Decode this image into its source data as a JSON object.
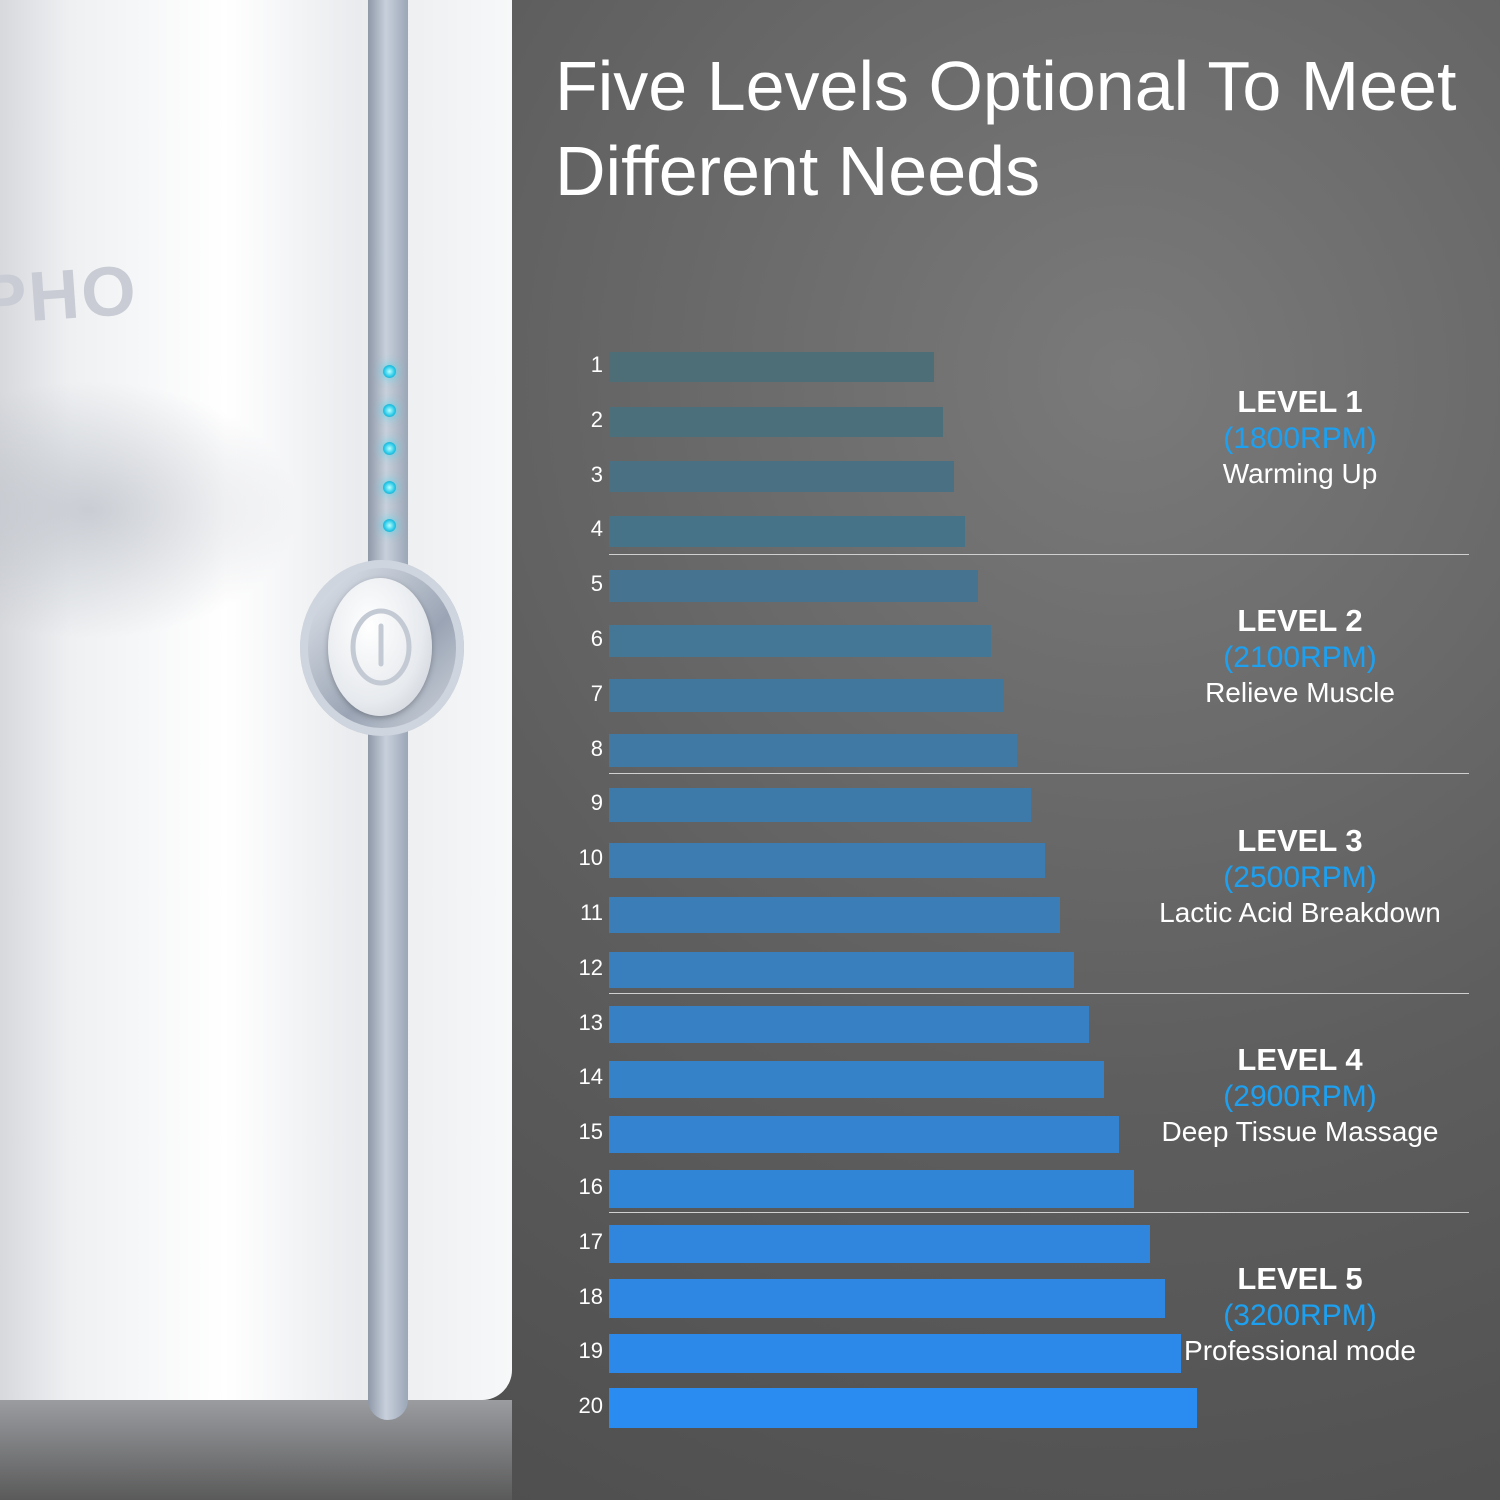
{
  "headline": "Five Levels Optional To Meet Different Needs",
  "brand_partial": "PHO",
  "leds_count": 5,
  "bar_colors": {
    "start": "#4d6e76",
    "end": "#2a8bf0"
  },
  "rows": [
    {
      "num": "1",
      "value": 1
    },
    {
      "num": "2",
      "value": 2
    },
    {
      "num": "3",
      "value": 3
    },
    {
      "num": "4",
      "value": 4
    },
    {
      "num": "5",
      "value": 5
    },
    {
      "num": "6",
      "value": 6
    },
    {
      "num": "7",
      "value": 7
    },
    {
      "num": "8",
      "value": 8
    },
    {
      "num": "9",
      "value": 9
    },
    {
      "num": "10",
      "value": 10
    },
    {
      "num": "11",
      "value": 11
    },
    {
      "num": "12",
      "value": 12
    },
    {
      "num": "13",
      "value": 13
    },
    {
      "num": "14",
      "value": 14
    },
    {
      "num": "15",
      "value": 15
    },
    {
      "num": "16",
      "value": 16
    },
    {
      "num": "17",
      "value": 17
    },
    {
      "num": "18",
      "value": 18
    },
    {
      "num": "19",
      "value": 19
    },
    {
      "num": "20",
      "value": 20
    }
  ],
  "levels": [
    {
      "name": "LEVEL 1",
      "rpm": "(1800RPM)",
      "desc": "Warming Up",
      "rows": [
        1,
        4
      ]
    },
    {
      "name": "LEVEL 2",
      "rpm": "(2100RPM)",
      "desc": "Relieve Muscle",
      "rows": [
        5,
        8
      ]
    },
    {
      "name": "LEVEL 3",
      "rpm": "(2500RPM)",
      "desc": "Lactic Acid Breakdown",
      "rows": [
        9,
        12
      ]
    },
    {
      "name": "LEVEL 4",
      "rpm": "(2900RPM)",
      "desc": "Deep Tissue Massage",
      "rows": [
        13,
        16
      ]
    },
    {
      "name": "LEVEL 5",
      "rpm": "(3200RPM)",
      "desc": "Professional mode",
      "rows": [
        17,
        20
      ]
    }
  ]
}
